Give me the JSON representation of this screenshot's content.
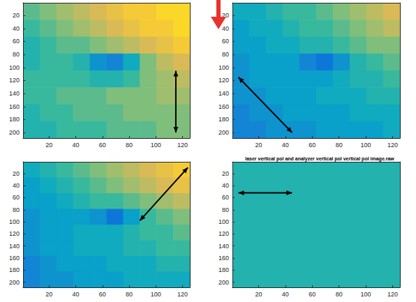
{
  "chart_data": [
    {
      "type": "heatmap",
      "xlim": [
        0.5,
        125.5
      ],
      "ylim": [
        208.5,
        0.5
      ],
      "xticks": [
        20,
        40,
        60,
        80,
        100,
        120
      ],
      "yticks": [
        20,
        40,
        60,
        80,
        100,
        120,
        140,
        160,
        180,
        200
      ],
      "x_edges": [
        0.5,
        13,
        25.5,
        38,
        50.5,
        63,
        75.5,
        88,
        100.5,
        113,
        125.5
      ],
      "y_edges": [
        0.5,
        26.5,
        52.5,
        78.5,
        104.5,
        130.5,
        156.5,
        182.5,
        208.5
      ],
      "color_range": [
        0,
        1
      ],
      "cells": [
        [
          0.55,
          0.6,
          0.65,
          0.7,
          0.75,
          0.8,
          0.85,
          0.85,
          0.9,
          0.9
        ],
        [
          0.5,
          0.55,
          0.6,
          0.65,
          0.7,
          0.75,
          0.8,
          0.85,
          0.85,
          0.9
        ],
        [
          0.45,
          0.5,
          0.55,
          0.55,
          0.6,
          0.65,
          0.7,
          0.75,
          0.8,
          0.85
        ],
        [
          0.45,
          0.5,
          0.5,
          0.45,
          0.3,
          0.25,
          0.4,
          0.6,
          0.7,
          0.75
        ],
        [
          0.5,
          0.5,
          0.5,
          0.5,
          0.45,
          0.45,
          0.5,
          0.6,
          0.65,
          0.7
        ],
        [
          0.5,
          0.5,
          0.55,
          0.55,
          0.55,
          0.6,
          0.6,
          0.6,
          0.65,
          0.65
        ],
        [
          0.45,
          0.5,
          0.5,
          0.55,
          0.55,
          0.55,
          0.6,
          0.6,
          0.6,
          0.6
        ],
        [
          0.45,
          0.45,
          0.5,
          0.5,
          0.5,
          0.55,
          0.55,
          0.55,
          0.6,
          0.6
        ]
      ]
    },
    {
      "type": "heatmap",
      "xlim": [
        0.5,
        125.5
      ],
      "ylim": [
        208.5,
        0.5
      ],
      "xticks": [
        20,
        40,
        60,
        80,
        100,
        120
      ],
      "yticks": [
        20,
        40,
        60,
        80,
        100,
        120,
        140,
        160,
        180,
        200
      ],
      "x_edges": [
        0.5,
        13,
        25.5,
        38,
        50.5,
        63,
        75.5,
        88,
        100.5,
        113,
        125.5
      ],
      "y_edges": [
        0.5,
        26.5,
        52.5,
        78.5,
        104.5,
        130.5,
        156.5,
        182.5,
        208.5
      ],
      "color_range": [
        0,
        1
      ],
      "cells": [
        [
          0.4,
          0.4,
          0.45,
          0.5,
          0.5,
          0.55,
          0.6,
          0.65,
          0.7,
          0.75
        ],
        [
          0.35,
          0.4,
          0.4,
          0.45,
          0.5,
          0.5,
          0.55,
          0.6,
          0.65,
          0.7
        ],
        [
          0.35,
          0.35,
          0.4,
          0.4,
          0.45,
          0.45,
          0.5,
          0.55,
          0.6,
          0.6
        ],
        [
          0.3,
          0.35,
          0.35,
          0.35,
          0.25,
          0.2,
          0.3,
          0.45,
          0.5,
          0.55
        ],
        [
          0.3,
          0.35,
          0.35,
          0.35,
          0.35,
          0.35,
          0.4,
          0.45,
          0.45,
          0.5
        ],
        [
          0.3,
          0.3,
          0.35,
          0.35,
          0.35,
          0.4,
          0.4,
          0.4,
          0.45,
          0.45
        ],
        [
          0.25,
          0.3,
          0.3,
          0.35,
          0.35,
          0.35,
          0.35,
          0.4,
          0.4,
          0.4
        ],
        [
          0.25,
          0.25,
          0.3,
          0.3,
          0.3,
          0.35,
          0.35,
          0.35,
          0.35,
          0.4
        ]
      ]
    },
    {
      "type": "heatmap",
      "xlim": [
        0.5,
        125.5
      ],
      "ylim": [
        208.5,
        0.5
      ],
      "xticks": [
        20,
        40,
        60,
        80,
        100,
        120
      ],
      "yticks": [
        20,
        40,
        60,
        80,
        100,
        120,
        140,
        160,
        180,
        200
      ],
      "x_edges": [
        0.5,
        13,
        25.5,
        38,
        50.5,
        63,
        75.5,
        88,
        100.5,
        113,
        125.5
      ],
      "y_edges": [
        0.5,
        26.5,
        52.5,
        78.5,
        104.5,
        130.5,
        156.5,
        182.5,
        208.5
      ],
      "color_range": [
        0,
        1
      ],
      "cells": [
        [
          0.4,
          0.45,
          0.5,
          0.55,
          0.6,
          0.65,
          0.7,
          0.75,
          0.8,
          0.85
        ],
        [
          0.35,
          0.4,
          0.45,
          0.5,
          0.55,
          0.6,
          0.65,
          0.7,
          0.75,
          0.8
        ],
        [
          0.35,
          0.35,
          0.4,
          0.45,
          0.5,
          0.5,
          0.55,
          0.6,
          0.65,
          0.7
        ],
        [
          0.3,
          0.35,
          0.35,
          0.35,
          0.3,
          0.2,
          0.35,
          0.5,
          0.55,
          0.6
        ],
        [
          0.3,
          0.35,
          0.35,
          0.4,
          0.4,
          0.4,
          0.45,
          0.5,
          0.5,
          0.55
        ],
        [
          0.3,
          0.35,
          0.35,
          0.4,
          0.4,
          0.4,
          0.45,
          0.45,
          0.5,
          0.5
        ],
        [
          0.25,
          0.3,
          0.35,
          0.35,
          0.35,
          0.4,
          0.4,
          0.4,
          0.45,
          0.45
        ],
        [
          0.25,
          0.3,
          0.3,
          0.35,
          0.35,
          0.35,
          0.4,
          0.4,
          0.4,
          0.4
        ]
      ]
    },
    {
      "type": "heatmap",
      "title": "laser vertical pol and analyzer vertical pol vertical pol image.raw",
      "xlim": [
        0.5,
        125.5
      ],
      "ylim": [
        208.5,
        0.5
      ],
      "xticks": [
        20,
        40,
        60,
        80,
        100,
        120
      ],
      "yticks": [
        20,
        40,
        60,
        80,
        100,
        120,
        140,
        160,
        180,
        200
      ],
      "x_edges": [
        0.5,
        13,
        25.5,
        38,
        50.5,
        63,
        75.5,
        88,
        100.5,
        113,
        125.5
      ],
      "y_edges": [
        0.5,
        26.5,
        52.5,
        78.5,
        104.5,
        130.5,
        156.5,
        182.5,
        208.5
      ],
      "color_range": [
        0,
        1
      ],
      "cells": [
        [
          0.45,
          0.45,
          0.45,
          0.45,
          0.45,
          0.45,
          0.45,
          0.45,
          0.45,
          0.45
        ],
        [
          0.45,
          0.45,
          0.45,
          0.45,
          0.45,
          0.45,
          0.45,
          0.45,
          0.45,
          0.45
        ],
        [
          0.45,
          0.45,
          0.45,
          0.45,
          0.45,
          0.45,
          0.45,
          0.45,
          0.45,
          0.45
        ],
        [
          0.45,
          0.45,
          0.45,
          0.45,
          0.45,
          0.45,
          0.45,
          0.45,
          0.45,
          0.45
        ],
        [
          0.45,
          0.45,
          0.45,
          0.45,
          0.45,
          0.45,
          0.45,
          0.45,
          0.45,
          0.45
        ],
        [
          0.45,
          0.45,
          0.45,
          0.45,
          0.45,
          0.45,
          0.45,
          0.45,
          0.45,
          0.45
        ],
        [
          0.45,
          0.45,
          0.45,
          0.45,
          0.45,
          0.45,
          0.45,
          0.45,
          0.45,
          0.45
        ],
        [
          0.45,
          0.45,
          0.45,
          0.45,
          0.45,
          0.45,
          0.45,
          0.45,
          0.45,
          0.45
        ]
      ]
    }
  ]
}
